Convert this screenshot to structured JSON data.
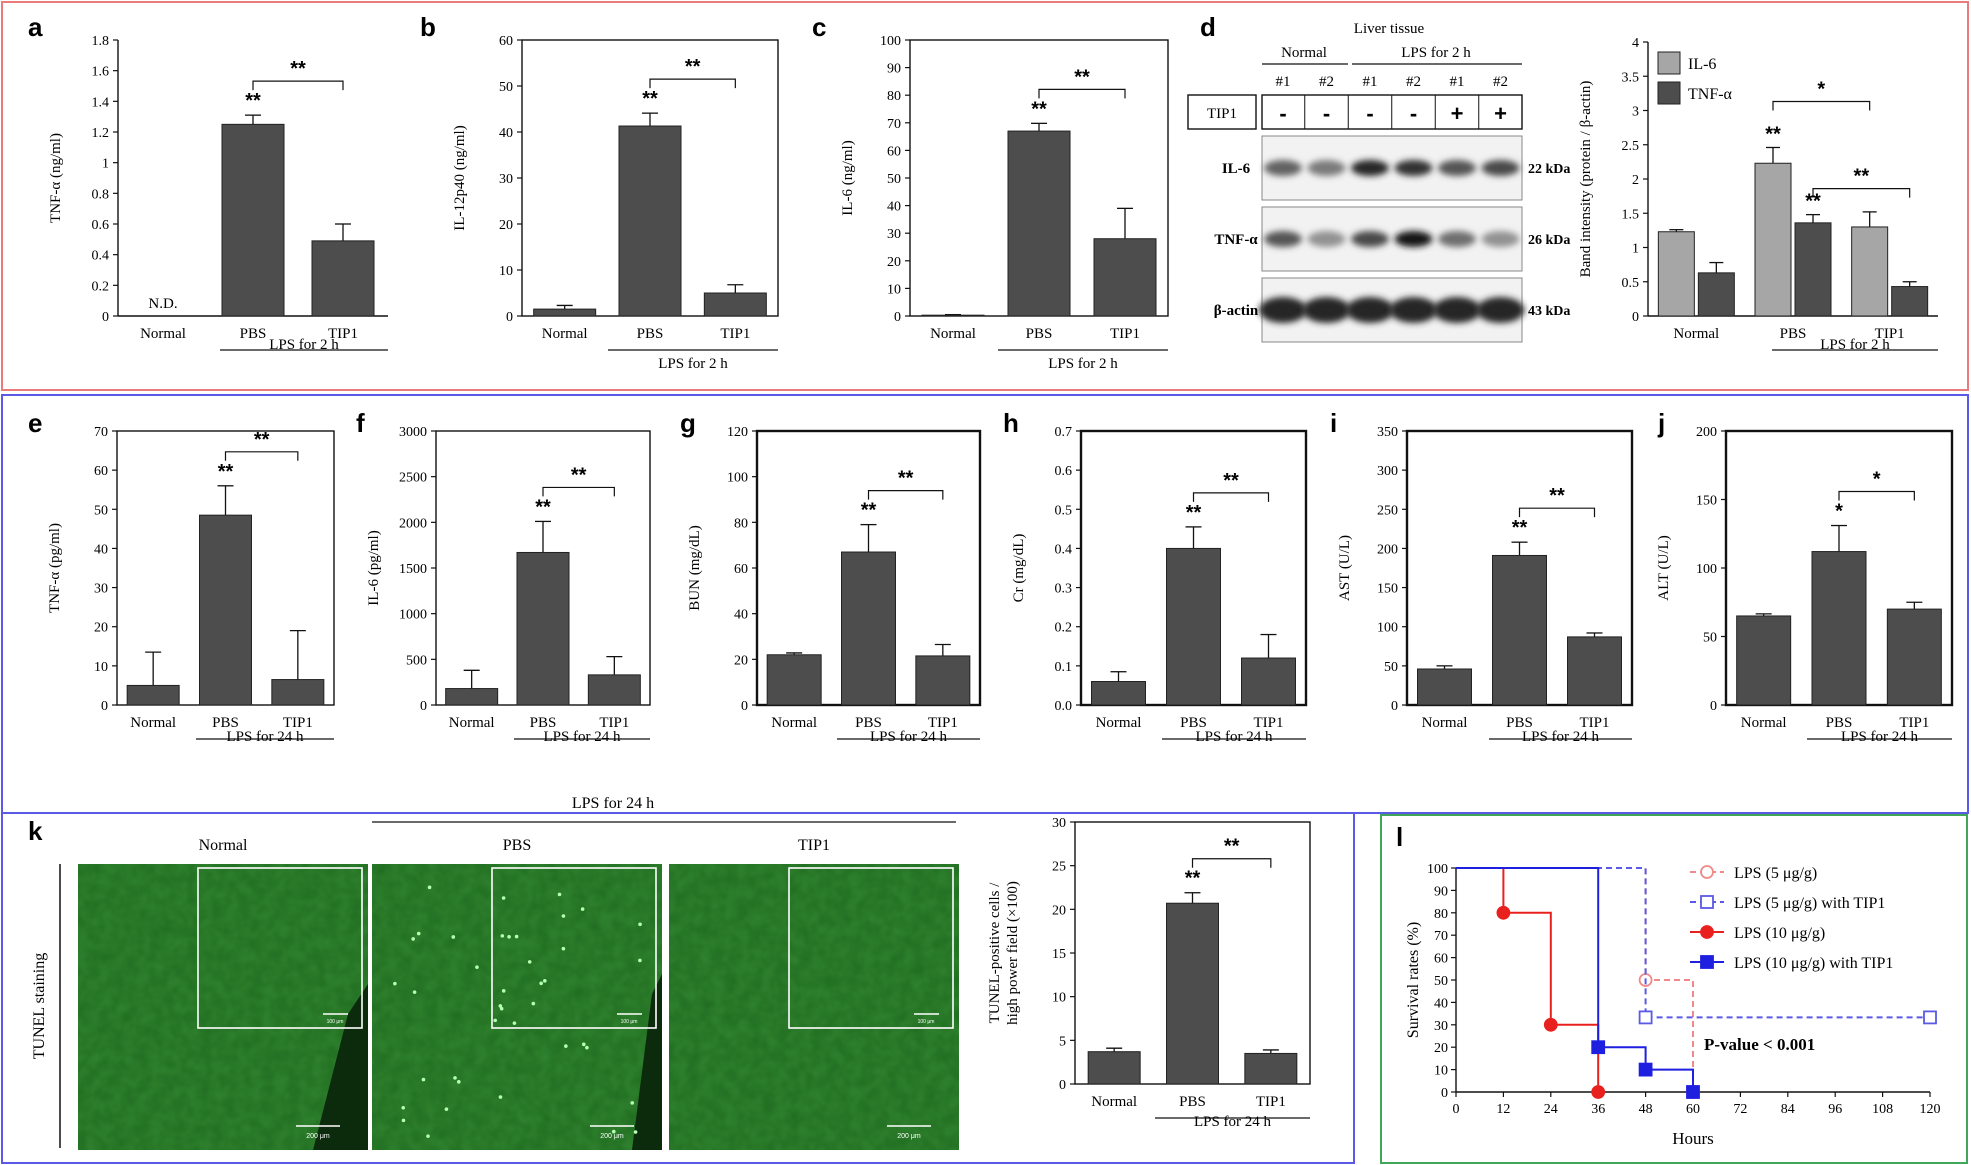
{
  "panel_labels": [
    "a",
    "b",
    "c",
    "d",
    "e",
    "f",
    "g",
    "h",
    "i",
    "j",
    "k",
    "l"
  ],
  "colors": {
    "bar": "#4d4d4d",
    "bar_light": "#a6a6a6",
    "red": "#e8211f",
    "blue": "#1f1fe0",
    "red_box": "#e97b7b",
    "blue_box": "#5a5ae6",
    "green_box": "#41a65a",
    "tissue": "#1f6b1f"
  },
  "chart_data": [
    {
      "id": "a",
      "type": "bar",
      "ylabel": "TNF-α (ng/ml)",
      "ylim": [
        0,
        1.8
      ],
      "ticks": [
        "0",
        "0.2",
        "0.4",
        "0.6",
        "0.8",
        "1",
        "1.2",
        "1.4",
        "1.6",
        "1.8"
      ],
      "categories": [
        "Normal",
        "PBS",
        "TIP1"
      ],
      "values": [
        0,
        1.25,
        0.49
      ],
      "errors": [
        0,
        0.06,
        0.11
      ],
      "bar_labels": [
        "N.D.",
        "",
        ""
      ],
      "star_on_bar": [
        "",
        "**",
        ""
      ],
      "bracket": {
        "from": 1,
        "to": 2,
        "label": "**"
      },
      "group_label": "LPS for 2 h"
    },
    {
      "id": "b",
      "type": "bar",
      "ylabel": "IL-12p40 (ng/ml)",
      "ylim": [
        0,
        60
      ],
      "ticks": [
        "0",
        "10",
        "20",
        "30",
        "40",
        "50",
        "60"
      ],
      "categories": [
        "Normal",
        "PBS",
        "TIP1"
      ],
      "values": [
        1.5,
        41.3,
        5.0
      ],
      "errors": [
        0.8,
        2.8,
        1.8
      ],
      "bar_labels": [
        "",
        "",
        ""
      ],
      "star_on_bar": [
        "",
        "**",
        ""
      ],
      "bracket": {
        "from": 1,
        "to": 2,
        "label": "**"
      },
      "group_label": "LPS for 2 h"
    },
    {
      "id": "c",
      "type": "bar",
      "ylabel": "IL-6 (ng/ml)",
      "ylim": [
        0,
        100
      ],
      "ticks": [
        "0",
        "10",
        "20",
        "30",
        "40",
        "50",
        "60",
        "70",
        "80",
        "90",
        "100"
      ],
      "categories": [
        "Normal",
        "PBS",
        "TIP1"
      ],
      "values": [
        0.3,
        67.0,
        28.0
      ],
      "errors": [
        0.2,
        2.8,
        11.0
      ],
      "bar_labels": [
        "",
        "",
        ""
      ],
      "star_on_bar": [
        "",
        "**",
        ""
      ],
      "bracket": {
        "from": 1,
        "to": 2,
        "label": "**"
      },
      "group_label": "LPS for 2 h"
    },
    {
      "id": "d",
      "type": "bar",
      "ylabel": "Band intensity (protein / β-actin)",
      "ylim": [
        0,
        4
      ],
      "ticks": [
        "0",
        "0.5",
        "1",
        "1.5",
        "2",
        "2.5",
        "3",
        "3.5",
        "4"
      ],
      "categories": [
        "Normal",
        "PBS",
        "TIP1"
      ],
      "series": [
        {
          "name": "IL-6",
          "values": [
            1.23,
            2.23,
            1.3
          ],
          "errors": [
            0.03,
            0.23,
            0.22
          ],
          "stars": [
            "",
            "**",
            ""
          ]
        },
        {
          "name": "TNF-α",
          "values": [
            0.63,
            1.36,
            0.43
          ],
          "errors": [
            0.15,
            0.12,
            0.07
          ],
          "stars": [
            "",
            "**",
            ""
          ]
        }
      ],
      "brackets": [
        {
          "label": "*"
        },
        {
          "label": "**"
        }
      ],
      "group_label": "LPS for 2 h"
    },
    {
      "id": "e",
      "type": "bar",
      "ylabel": "TNF-α (pg/ml)",
      "ylim": [
        0,
        70
      ],
      "ticks": [
        "0",
        "10",
        "20",
        "30",
        "40",
        "50",
        "60",
        "70"
      ],
      "categories": [
        "Normal",
        "PBS",
        "TIP1"
      ],
      "values": [
        5.0,
        48.5,
        6.5
      ],
      "errors": [
        8.5,
        7.5,
        12.5
      ],
      "bar_labels": [
        "",
        "",
        ""
      ],
      "star_on_bar": [
        "",
        "**",
        ""
      ],
      "bracket": {
        "from": 1,
        "to": 2,
        "label": "**"
      },
      "group_label": "LPS for 24 h"
    },
    {
      "id": "f",
      "type": "bar",
      "ylabel": "IL-6 (pg/ml)",
      "ylim": [
        0,
        3000
      ],
      "ticks": [
        "0",
        "500",
        "1000",
        "1500",
        "2000",
        "2500",
        "3000"
      ],
      "categories": [
        "Normal",
        "PBS",
        "TIP1"
      ],
      "values": [
        180,
        1670,
        330
      ],
      "errors": [
        200,
        340,
        200
      ],
      "bar_labels": [
        "",
        "",
        ""
      ],
      "star_on_bar": [
        "",
        "**",
        ""
      ],
      "bracket": {
        "from": 1,
        "to": 2,
        "label": "**"
      },
      "group_label": "LPS for 24 h"
    },
    {
      "id": "g",
      "type": "bar",
      "ylabel": "BUN (mg/dL)",
      "ylim": [
        0,
        120
      ],
      "ticks": [
        "0",
        "20",
        "40",
        "60",
        "80",
        "100",
        "120"
      ],
      "categories": [
        "Normal",
        "PBS",
        "TIP1"
      ],
      "values": [
        22,
        67,
        21.5
      ],
      "errors": [
        0.8,
        12,
        5
      ],
      "bar_labels": [
        "",
        "",
        ""
      ],
      "star_on_bar": [
        "",
        "**",
        ""
      ],
      "bracket": {
        "from": 1,
        "to": 2,
        "label": "**"
      },
      "group_label": "LPS for 24 h"
    },
    {
      "id": "h",
      "type": "bar",
      "ylabel": "Cr (mg/dL)",
      "ylim": [
        0,
        0.7
      ],
      "ticks": [
        "0.0",
        "0.1",
        "0.2",
        "0.3",
        "0.4",
        "0.5",
        "0.6",
        "0.7"
      ],
      "categories": [
        "Normal",
        "PBS",
        "TIP1"
      ],
      "values": [
        0.06,
        0.4,
        0.12
      ],
      "errors": [
        0.025,
        0.055,
        0.06
      ],
      "bar_labels": [
        "",
        "",
        ""
      ],
      "star_on_bar": [
        "",
        "**",
        ""
      ],
      "bracket": {
        "from": 1,
        "to": 2,
        "label": "**"
      },
      "group_label": "LPS for 24 h"
    },
    {
      "id": "i",
      "type": "bar",
      "ylabel": "AST (U/L)",
      "ylim": [
        0,
        350
      ],
      "ticks": [
        "0",
        "50",
        "100",
        "150",
        "200",
        "250",
        "300",
        "350"
      ],
      "categories": [
        "Normal",
        "PBS",
        "TIP1"
      ],
      "values": [
        46,
        191,
        87
      ],
      "errors": [
        4,
        17,
        5
      ],
      "bar_labels": [
        "",
        "",
        ""
      ],
      "star_on_bar": [
        "",
        "**",
        ""
      ],
      "bracket": {
        "from": 1,
        "to": 2,
        "label": "**"
      },
      "group_label": "LPS for 24 h"
    },
    {
      "id": "j",
      "type": "bar",
      "ylabel": "ALT (U/L)",
      "ylim": [
        0,
        200
      ],
      "ticks": [
        "0",
        "50",
        "100",
        "150",
        "200"
      ],
      "categories": [
        "Normal",
        "PBS",
        "TIP1"
      ],
      "values": [
        65,
        112,
        70
      ],
      "errors": [
        1.5,
        19,
        5
      ],
      "bar_labels": [
        "",
        "",
        ""
      ],
      "star_on_bar": [
        "",
        "*",
        ""
      ],
      "bracket": {
        "from": 1,
        "to": 2,
        "label": "*"
      },
      "group_label": "LPS for 24 h"
    },
    {
      "id": "k",
      "type": "bar",
      "ylabel": "TUNEL-positive cells / high power field (×100)",
      "ylim": [
        0,
        30
      ],
      "ylabel_lines": [
        "TUNEL-positive cells /",
        "high power field (×100)"
      ],
      "ticks": [
        "0",
        "5",
        "10",
        "15",
        "20",
        "25",
        "30"
      ],
      "categories": [
        "Normal",
        "PBS",
        "TIP1"
      ],
      "values": [
        3.7,
        20.7,
        3.5
      ],
      "errors": [
        0.4,
        1.2,
        0.4
      ],
      "bar_labels": [
        "",
        "",
        ""
      ],
      "star_on_bar": [
        "",
        "**",
        ""
      ],
      "bracket": {
        "from": 1,
        "to": 2,
        "label": "**"
      },
      "group_label": "LPS for 24 h"
    },
    {
      "id": "l",
      "type": "line",
      "title": "",
      "xlabel": "Hours",
      "ylabel": "Survival rates (%)",
      "xlim": [
        0,
        120
      ],
      "ylim": [
        0,
        100
      ],
      "xticks": [
        "0",
        "12",
        "24",
        "36",
        "48",
        "60",
        "72",
        "84",
        "96",
        "108",
        "120"
      ],
      "yticks": [
        "0",
        "10",
        "20",
        "30",
        "40",
        "50",
        "60",
        "70",
        "80",
        "90",
        "100"
      ],
      "series": [
        {
          "name": "LPS (5 μg/g)",
          "style": "dashed",
          "marker": "open-circle",
          "color": "#f08a8a",
          "x": [
            0,
            48,
            60
          ],
          "y": [
            100,
            50,
            0
          ]
        },
        {
          "name": "LPS (5 μg/g) with TIP1",
          "style": "dashed",
          "marker": "open-square",
          "color": "#5a5ae6",
          "x": [
            0,
            48,
            120
          ],
          "y": [
            100,
            33.3,
            33.3
          ]
        },
        {
          "name": "LPS (10 μg/g)",
          "style": "solid",
          "marker": "circle",
          "color": "#e8211f",
          "x": [
            0,
            12,
            24,
            36
          ],
          "y": [
            100,
            80,
            30,
            0
          ]
        },
        {
          "name": "LPS (10 μg/g) with TIP1",
          "style": "solid",
          "marker": "square",
          "color": "#1f1fe0",
          "x": [
            0,
            36,
            48,
            60
          ],
          "y": [
            100,
            20,
            10,
            0
          ]
        }
      ],
      "annotation": "P-value < 0.001",
      "legend_position": "top-right"
    }
  ],
  "western_blot": {
    "title": "Liver tissue",
    "groups": [
      "Normal",
      "LPS for 2 h"
    ],
    "lanes": [
      "#1",
      "#2",
      "#1",
      "#2",
      "#1",
      "#2"
    ],
    "treatment_label": "TIP1",
    "treatment": [
      "-",
      "-",
      "-",
      "-",
      "+",
      "+"
    ],
    "rows": [
      {
        "protein": "IL-6",
        "size": "22 kDa",
        "intensity": [
          0.65,
          0.55,
          0.9,
          0.85,
          0.7,
          0.75
        ]
      },
      {
        "protein": "TNF-α",
        "size": "26 kDa",
        "intensity": [
          0.7,
          0.45,
          0.75,
          0.95,
          0.6,
          0.45
        ]
      },
      {
        "protein": "β-actin",
        "size": "43 kDa",
        "intensity": [
          0.9,
          0.9,
          0.9,
          0.9,
          0.9,
          0.9
        ]
      }
    ]
  },
  "tunel": {
    "side_label": "TUNEL staining",
    "top_label": "LPS for 24 h",
    "images": [
      {
        "label": "Normal",
        "inset_scale": "100 μm",
        "scale": "200 μm",
        "dots": 0
      },
      {
        "label": "PBS",
        "inset_scale": "100 μm",
        "scale": "200 μm",
        "dots": 40
      },
      {
        "label": "TIP1",
        "inset_scale": "100 μm",
        "scale": "200 μm",
        "dots": 0
      }
    ]
  }
}
